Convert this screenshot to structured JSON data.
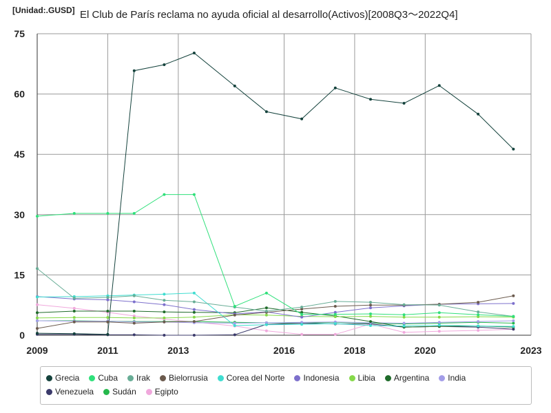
{
  "unit_label": "[Unidad:.GUSD]",
  "chart_data": {
    "type": "line",
    "title": "El Club de París reclama no ayuda oficial al desarrollo(Activos)[2008Q3～2022Q4]",
    "xlabel": "",
    "ylabel": "",
    "xlim": [
      2009,
      2023
    ],
    "ylim": [
      0,
      75
    ],
    "x_ticks": [
      "2009",
      "2011",
      "2013",
      "2016",
      "2018",
      "2020",
      "2023"
    ],
    "y_ticks": [
      "0",
      "15",
      "30",
      "45",
      "60",
      "75"
    ],
    "grid": true,
    "legend_position": "bottom",
    "x": [
      2009.0,
      2010.05,
      2011.0,
      2011.75,
      2012.6,
      2013.45,
      2014.6,
      2015.5,
      2016.5,
      2017.45,
      2018.45,
      2019.4,
      2020.4,
      2021.5,
      2022.5
    ],
    "series": [
      {
        "name": "Grecia",
        "color": "#14423c",
        "values": [
          0.5,
          0.4,
          0.2,
          65.8,
          67.3,
          70.2,
          62.0,
          55.6,
          53.8,
          61.5,
          58.7,
          57.7,
          62.1,
          55.0,
          46.3
        ]
      },
      {
        "name": "Cuba",
        "color": "#2fe07a",
        "values": [
          29.6,
          30.3,
          30.3,
          30.3,
          35.0,
          35.0,
          7.2,
          10.5,
          5.2,
          5.2,
          5.3,
          5.1,
          5.6,
          5.1,
          4.7
        ]
      },
      {
        "name": "Irak",
        "color": "#68ad96",
        "values": [
          16.6,
          9.2,
          9.4,
          9.8,
          8.7,
          8.3,
          7.0,
          6.0,
          7.0,
          8.4,
          8.2,
          7.6,
          7.5,
          5.8,
          4.7
        ]
      },
      {
        "name": "Bielorrusia",
        "color": "#6b5a4d",
        "values": [
          1.7,
          3.3,
          3.3,
          3.0,
          3.3,
          3.4,
          5.0,
          5.7,
          6.5,
          7.2,
          7.5,
          7.5,
          7.7,
          8.2,
          9.8
        ]
      },
      {
        "name": "Corea del Norte",
        "color": "#3fddd0",
        "values": [
          9.5,
          9.6,
          9.8,
          10.0,
          10.2,
          10.5,
          2.4,
          2.6,
          2.7,
          2.9,
          2.4,
          2.3,
          2.5,
          2.3,
          2.2
        ]
      },
      {
        "name": "Indonesia",
        "color": "#7d70cc",
        "values": [
          9.6,
          9.0,
          8.8,
          8.3,
          7.6,
          6.4,
          5.3,
          5.8,
          4.5,
          5.7,
          6.8,
          7.3,
          7.7,
          7.8,
          7.9
        ]
      },
      {
        "name": "Libia",
        "color": "#86d94a",
        "values": [
          4.3,
          4.4,
          4.4,
          4.3,
          4.3,
          4.5,
          5.1,
          5.0,
          4.7,
          4.6,
          4.7,
          4.5,
          4.5,
          4.6,
          4.5
        ]
      },
      {
        "name": "Argentina",
        "color": "#1f6b2a",
        "values": [
          5.6,
          6.0,
          6.0,
          6.0,
          5.8,
          5.7,
          5.6,
          6.8,
          5.7,
          4.8,
          3.4,
          2.0,
          2.2,
          2.3,
          2.0
        ]
      },
      {
        "name": "India",
        "color": "#a39de8",
        "values": [
          3.6,
          3.5,
          3.5,
          3.3,
          3.3,
          3.1,
          3.0,
          3.1,
          3.2,
          3.3,
          3.1,
          3.0,
          3.2,
          3.4,
          3.6
        ]
      },
      {
        "name": "Venezuela",
        "color": "#3b3a6b",
        "values": [
          0.2,
          0.2,
          0.1,
          0.1,
          0.0,
          0.0,
          0.1,
          2.7,
          3.0,
          2.8,
          2.8,
          2.0,
          2.2,
          2.0,
          1.5
        ]
      },
      {
        "name": "Sudán",
        "color": "#25b84c",
        "values": [
          3.6,
          3.6,
          3.5,
          3.4,
          3.4,
          3.4,
          3.2,
          3.1,
          3.0,
          3.2,
          3.0,
          2.8,
          3.0,
          3.2,
          3.0
        ]
      },
      {
        "name": "Egipto",
        "color": "#f0a8dc",
        "values": [
          7.6,
          6.7,
          5.7,
          4.8,
          4.0,
          3.3,
          2.3,
          1.1,
          0.2,
          0.2,
          2.8,
          0.7,
          1.0,
          1.2,
          1.5
        ]
      }
    ]
  }
}
